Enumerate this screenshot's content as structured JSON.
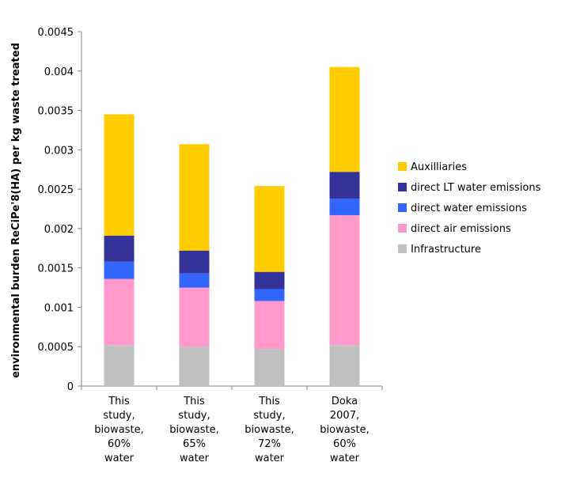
{
  "chart_data": {
    "type": "bar",
    "stacked": true,
    "title": "",
    "xlabel": "",
    "ylabel": "environmental burden ReCiPe'8(HA) per kg waste treated",
    "ylim": [
      0,
      0.0045
    ],
    "yticks": [
      "0",
      "0.0005",
      "0.001",
      "0.0015",
      "0.002",
      "0.0025",
      "0.003",
      "0.0035",
      "0.004",
      "0.0045"
    ],
    "categories": [
      [
        "This",
        "study,",
        "biowaste,",
        "60%",
        "water"
      ],
      [
        "This",
        "study,",
        "biowaste,",
        "65%",
        "water"
      ],
      [
        "This",
        "study,",
        "biowaste,",
        "72%",
        "water"
      ],
      [
        "Doka",
        "2007,",
        "biowaste,",
        "60%",
        "water"
      ]
    ],
    "legend_position": "right",
    "series": [
      {
        "name": "Infrastructure",
        "color": "#c0c0c0",
        "values": [
          0.00052,
          0.0005,
          0.00047,
          0.00052
        ]
      },
      {
        "name": "direct air emissions",
        "color": "#ff99cc",
        "values": [
          0.00084,
          0.00075,
          0.00061,
          0.00165
        ]
      },
      {
        "name": "direct water emissions",
        "color": "#3366ff",
        "values": [
          0.00022,
          0.00018,
          0.00015,
          0.00021
        ]
      },
      {
        "name": "direct LT water emissions",
        "color": "#333399",
        "values": [
          0.00033,
          0.00029,
          0.00022,
          0.00034
        ]
      },
      {
        "name": "Auxilliaries",
        "color": "#ffcc00",
        "values": [
          0.00154,
          0.00135,
          0.00109,
          0.00133
        ]
      }
    ]
  }
}
